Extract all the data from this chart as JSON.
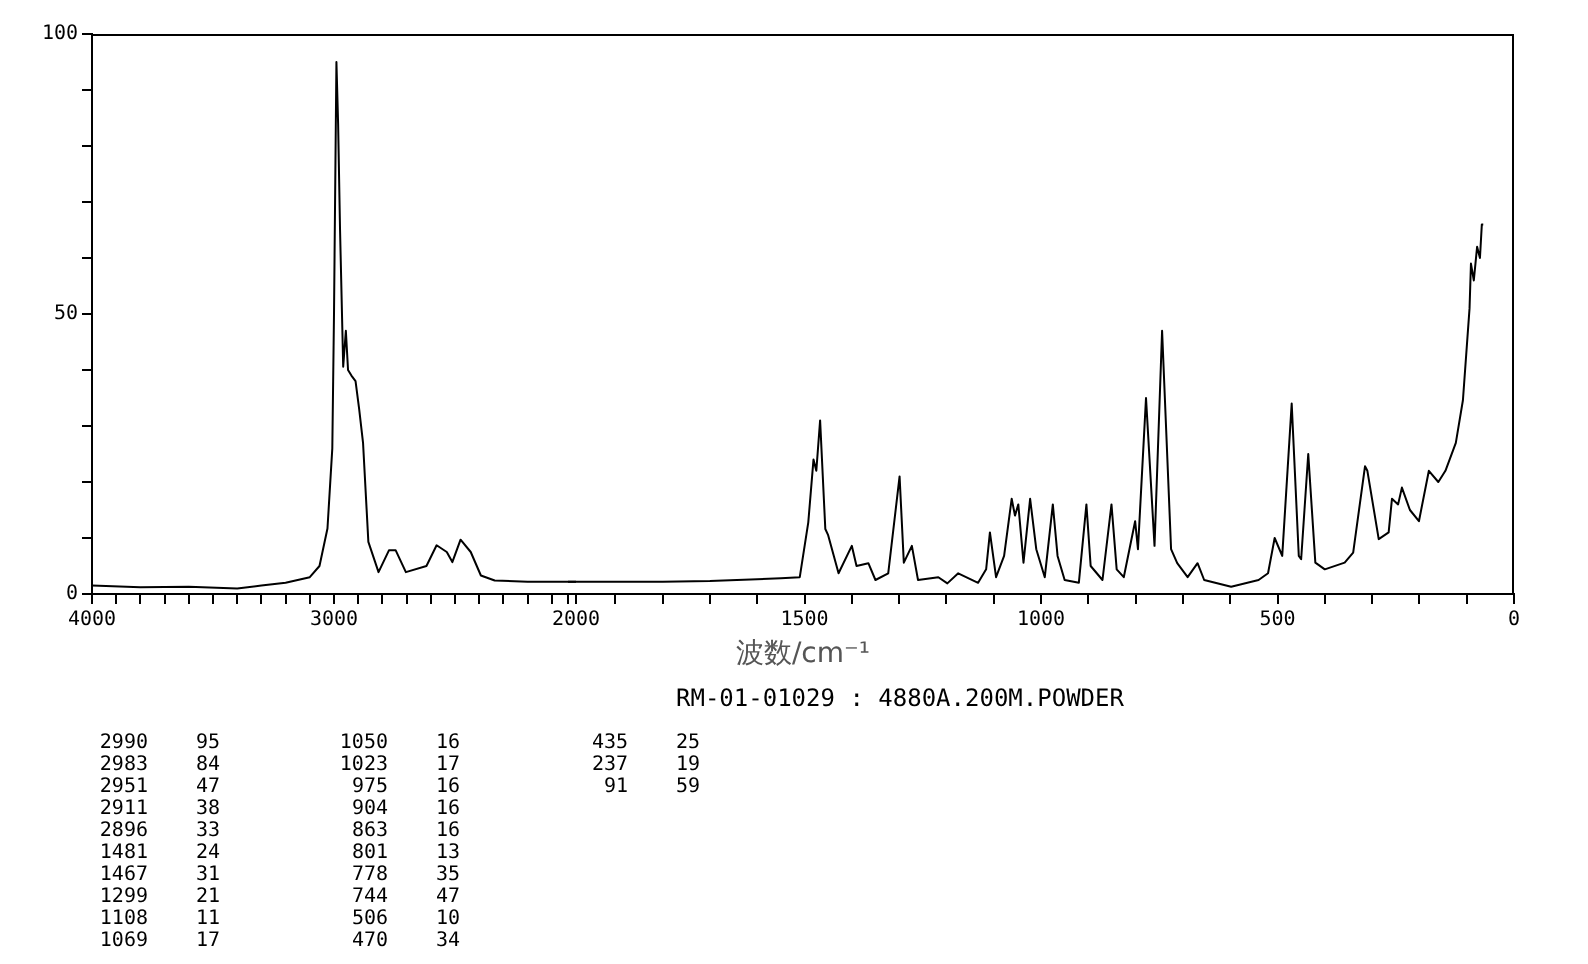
{
  "chart_data": [
    {
      "type": "line",
      "xlim": [
        4000,
        2000
      ],
      "xticks": [
        4000,
        {
          "value": 3900,
          "label": null
        },
        {
          "value": 3800,
          "label": null
        },
        {
          "value": 3700,
          "label": null
        },
        {
          "value": 3600,
          "label": null
        },
        {
          "value": 3500,
          "label": null
        },
        {
          "value": 3400,
          "label": null
        },
        {
          "value": 3300,
          "label": null
        },
        {
          "value": 3200,
          "label": null
        },
        {
          "value": 3100,
          "label": null
        },
        3000,
        {
          "value": 2900,
          "label": null
        },
        {
          "value": 2800,
          "label": null
        },
        {
          "value": 2700,
          "label": null
        },
        {
          "value": 2600,
          "label": null
        },
        {
          "value": 2500,
          "label": null
        },
        {
          "value": 2400,
          "label": null
        },
        {
          "value": 2300,
          "label": null
        },
        {
          "value": 2200,
          "label": null
        },
        {
          "value": 2100,
          "label": null
        },
        2000
      ],
      "ylim": [
        0,
        100
      ],
      "yticks": [
        0,
        {
          "value": 10,
          "label": null
        },
        {
          "value": 20,
          "label": null
        },
        {
          "value": 30,
          "label": null
        },
        {
          "value": 40,
          "label": null
        },
        50,
        {
          "value": 60,
          "label": null
        },
        {
          "value": 70,
          "label": null
        },
        {
          "value": 80,
          "label": null
        },
        {
          "value": 90,
          "label": null
        },
        100
      ],
      "marker": "none",
      "series": [
        {
          "color": "#000000",
          "x": [
            4000,
            3800,
            3600,
            3400,
            3300,
            3200,
            3100,
            3060,
            3027,
            3007,
            3000,
            2990,
            2983,
            2975,
            2962,
            2951,
            2942,
            2928,
            2911,
            2896,
            2880,
            2858,
            2816,
            2773,
            2745,
            2703,
            2618,
            2576,
            2534,
            2511,
            2477,
            2435,
            2393,
            2336,
            2200,
            2000
          ],
          "values": [
            1.5,
            1.2,
            1.3,
            1.0,
            1.5,
            2,
            3,
            5,
            11.7,
            26,
            50,
            95,
            84,
            65,
            40.6,
            47,
            40,
            39,
            38,
            33,
            27,
            9.3,
            3.9,
            7.8,
            7.8,
            3.9,
            5,
            8.7,
            7.5,
            5.7,
            9.7,
            7.5,
            3.3,
            2.4,
            2.2,
            2.2
          ]
        }
      ],
      "annotations": [
        "2990 95",
        "2983 84",
        "2951 47",
        "2911 38",
        "2896 33",
        "1481 24",
        "1467 31",
        "1299 21",
        "1108 11",
        "1069 17",
        "1050 16",
        "1023 17",
        "975 16",
        "904 16",
        "863 16",
        "801 13",
        "778 35",
        "744 47",
        "506 10",
        "470 34",
        "435 25",
        "237 19",
        "91 59"
      ]
    },
    {
      "type": "line",
      "tick_labels": "x",
      "xlabel": "波数/cm⁻¹",
      "subtitle": "RM-01-01029 : 4880A.200M.POWDER",
      "xlim": [
        2000,
        0
      ],
      "xticks": [
        {
          "value": 2000,
          "label": null
        },
        {
          "value": 1900,
          "label": null
        },
        {
          "value": 1800,
          "label": null
        },
        {
          "value": 1700,
          "label": null
        },
        {
          "value": 1600,
          "label": null
        },
        1500,
        {
          "value": 1400,
          "label": null
        },
        {
          "value": 1300,
          "label": null
        },
        {
          "value": 1200,
          "label": null
        },
        {
          "value": 1100,
          "label": null
        },
        1000,
        {
          "value": 900,
          "label": null
        },
        {
          "value": 800,
          "label": null
        },
        {
          "value": 700,
          "label": null
        },
        {
          "value": 600,
          "label": null
        },
        500,
        {
          "value": 400,
          "label": null
        },
        {
          "value": 300,
          "label": null
        },
        {
          "value": 200,
          "label": null
        },
        {
          "value": 100,
          "label": null
        },
        0
      ],
      "ylim": [
        0,
        100
      ],
      "marker": "none",
      "series": [
        {
          "color": "#000000",
          "x": [
            2000,
            1800,
            1700,
            1550,
            1510,
            1492,
            1481,
            1475,
            1467,
            1456,
            1450,
            1428,
            1400,
            1390,
            1365,
            1350,
            1323,
            1299,
            1290,
            1273,
            1260,
            1217,
            1198,
            1175,
            1133,
            1116,
            1108,
            1095,
            1078,
            1062,
            1055,
            1048,
            1037,
            1023,
            1010,
            992,
            975,
            965,
            950,
            920,
            904,
            895,
            870,
            851,
            840,
            825,
            801,
            795,
            778,
            760,
            744,
            725,
            712,
            690,
            669,
            655,
            598,
            540,
            520,
            506,
            490,
            470,
            455,
            450,
            435,
            420,
            400,
            358,
            340,
            315,
            310,
            286,
            265,
            258,
            245,
            237,
            220,
            201,
            180,
            160,
            145,
            123,
            108,
            94,
            91,
            85,
            78,
            72,
            68,
            65
          ],
          "values": [
            2.2,
            2.2,
            2.3,
            2.8,
            3,
            12.8,
            24,
            22,
            31,
            11.6,
            10.5,
            3.7,
            8.6,
            5,
            5.5,
            2.5,
            3.7,
            21,
            5.6,
            8.6,
            2.5,
            3,
            1.9,
            3.7,
            2,
            4.4,
            11,
            3,
            6.8,
            17,
            14,
            16,
            5.6,
            17,
            8,
            3,
            16,
            6.8,
            2.5,
            2,
            16,
            5,
            2.5,
            16,
            4.4,
            3,
            13,
            8,
            35,
            8.6,
            47,
            8,
            5.5,
            3,
            5.5,
            2.5,
            1.3,
            2.5,
            3.7,
            10,
            6.8,
            34,
            6.8,
            6.2,
            25,
            5.6,
            4.4,
            5.6,
            7.4,
            22.8,
            22,
            9.8,
            11,
            17,
            16,
            19,
            15,
            13,
            22,
            20,
            22,
            27,
            34.6,
            51,
            59,
            56,
            62,
            60,
            66,
            66
          ]
        }
      ]
    }
  ]
}
